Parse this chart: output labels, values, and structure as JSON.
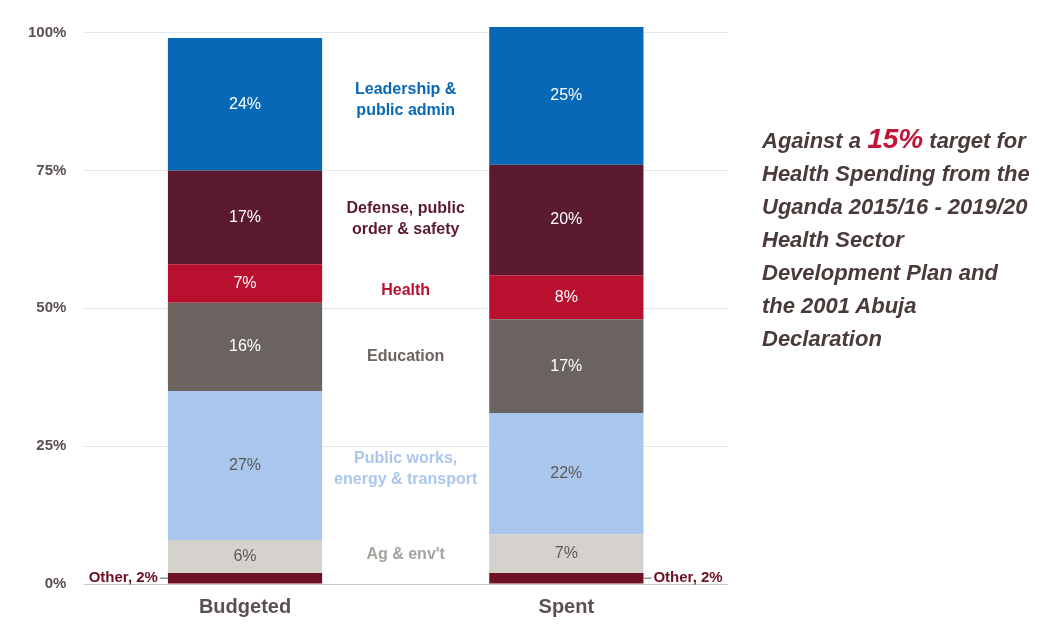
{
  "chart_data": {
    "type": "bar",
    "stacked": true,
    "categories": [
      "Budgeted",
      "Spent"
    ],
    "series": [
      {
        "name": "Other, 2%",
        "color": "#6e1023",
        "values": [
          2,
          2
        ],
        "value_labels": [
          null,
          null
        ]
      },
      {
        "name": "Ag & env't",
        "color": "#d5d1cc",
        "values": [
          6,
          7
        ],
        "value_labels": [
          "6%",
          "7%"
        ]
      },
      {
        "name": "Public works, energy & transport",
        "color": "#a9c7ec",
        "values": [
          27,
          22
        ],
        "value_labels": [
          "27%",
          "22%"
        ]
      },
      {
        "name": "Education",
        "color": "#6b6360",
        "values": [
          16,
          17
        ],
        "value_labels": [
          "16%",
          "17%"
        ]
      },
      {
        "name": "Health",
        "color": "#b8102e",
        "values": [
          7,
          8
        ],
        "value_labels": [
          "7%",
          "8%"
        ]
      },
      {
        "name": "Defense, public order & safety",
        "color": "#5b1a2d",
        "values": [
          17,
          20
        ],
        "value_labels": [
          "17%",
          "20%"
        ]
      },
      {
        "name": "Leadership & public admin",
        "color": "#0868b8",
        "values": [
          24,
          25
        ],
        "value_labels": [
          "24%",
          "25%"
        ]
      }
    ],
    "ylim": [
      0,
      101
    ],
    "yticks": [
      {
        "value": 0,
        "label": "0%"
      },
      {
        "value": 25,
        "label": "25%"
      },
      {
        "value": 50,
        "label": "50%"
      },
      {
        "value": 75,
        "label": "75%"
      },
      {
        "value": 100,
        "label": "100%"
      }
    ],
    "grid": "y",
    "legend": false,
    "annotations": [
      "Against a 15% target for Health Spending from the Uganda 2015/16 - 2019/20 Health Sector Development Plan and the 2001 Abuja Declaration"
    ]
  }
}
